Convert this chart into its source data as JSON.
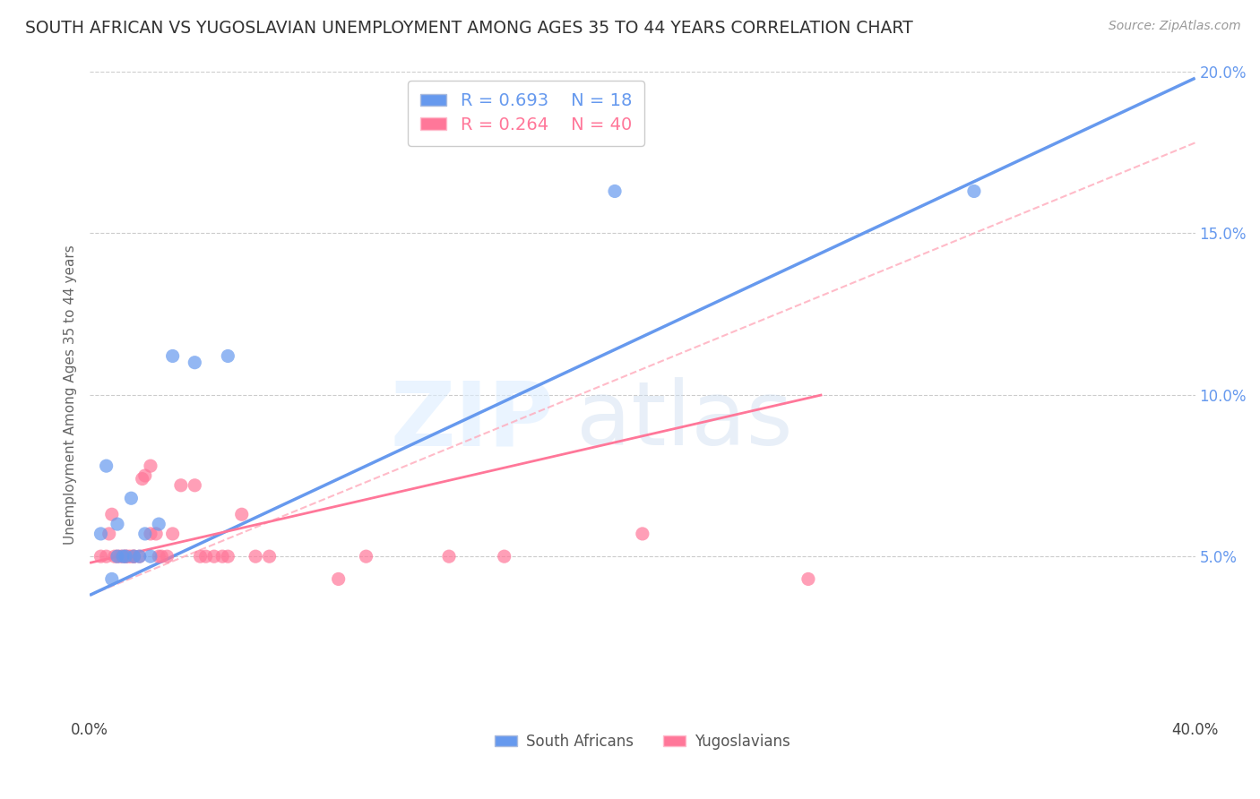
{
  "title": "SOUTH AFRICAN VS YUGOSLAVIAN UNEMPLOYMENT AMONG AGES 35 TO 44 YEARS CORRELATION CHART",
  "source": "Source: ZipAtlas.com",
  "ylabel": "Unemployment Among Ages 35 to 44 years",
  "xlim": [
    0.0,
    0.4
  ],
  "ylim": [
    0.0,
    0.2
  ],
  "xticks": [
    0.0,
    0.05,
    0.1,
    0.15,
    0.2,
    0.25,
    0.3,
    0.35,
    0.4
  ],
  "yticks": [
    0.0,
    0.05,
    0.1,
    0.15,
    0.2
  ],
  "south_african_color": "#6699ee",
  "yugoslavian_color": "#ff7799",
  "sa_R": 0.693,
  "sa_N": 18,
  "yu_R": 0.264,
  "yu_N": 40,
  "south_african_x": [
    0.004,
    0.006,
    0.008,
    0.01,
    0.01,
    0.012,
    0.013,
    0.015,
    0.016,
    0.018,
    0.02,
    0.022,
    0.025,
    0.03,
    0.038,
    0.05,
    0.19,
    0.32
  ],
  "south_african_y": [
    0.057,
    0.078,
    0.043,
    0.06,
    0.05,
    0.05,
    0.05,
    0.068,
    0.05,
    0.05,
    0.057,
    0.05,
    0.06,
    0.112,
    0.11,
    0.112,
    0.163,
    0.163
  ],
  "yugoslavian_x": [
    0.004,
    0.006,
    0.007,
    0.008,
    0.009,
    0.01,
    0.011,
    0.012,
    0.013,
    0.013,
    0.014,
    0.015,
    0.016,
    0.016,
    0.018,
    0.019,
    0.02,
    0.022,
    0.022,
    0.024,
    0.025,
    0.026,
    0.028,
    0.03,
    0.033,
    0.038,
    0.04,
    0.042,
    0.045,
    0.048,
    0.05,
    0.055,
    0.06,
    0.065,
    0.09,
    0.1,
    0.13,
    0.15,
    0.2,
    0.26
  ],
  "yugoslavian_y": [
    0.05,
    0.05,
    0.057,
    0.063,
    0.05,
    0.05,
    0.05,
    0.05,
    0.05,
    0.05,
    0.05,
    0.05,
    0.05,
    0.05,
    0.05,
    0.074,
    0.075,
    0.078,
    0.057,
    0.057,
    0.05,
    0.05,
    0.05,
    0.057,
    0.072,
    0.072,
    0.05,
    0.05,
    0.05,
    0.05,
    0.05,
    0.063,
    0.05,
    0.05,
    0.043,
    0.05,
    0.05,
    0.05,
    0.057,
    0.043
  ],
  "background_color": "#ffffff",
  "grid_color": "#cccccc",
  "dashed_line_color": "#ffaabb",
  "sa_line_x0": 0.0,
  "sa_line_y0": 0.038,
  "sa_line_x1": 0.4,
  "sa_line_y1": 0.198,
  "yu_line_x0": 0.0,
  "yu_line_y0": 0.048,
  "yu_line_x1": 0.265,
  "yu_line_y1": 0.1,
  "dash_line_x0": 0.0,
  "dash_line_y0": 0.038,
  "dash_line_x1": 0.4,
  "dash_line_y1": 0.178
}
